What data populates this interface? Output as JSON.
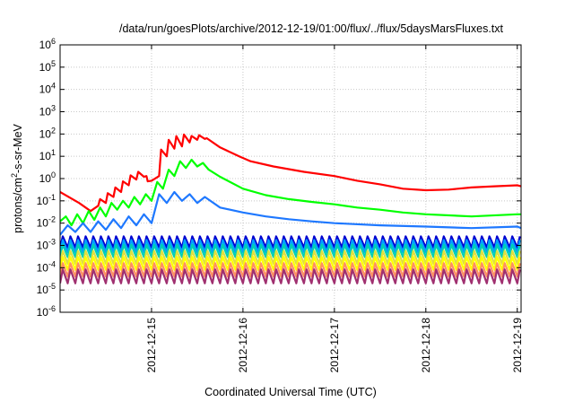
{
  "chart_data": {
    "type": "line",
    "title": "/data/run/goesPlots/archive/2012-12-19/01:00/flux/../flux/5daysMarsFluxes.txt",
    "xlabel": "Coordinated Universal Time (UTC)",
    "ylabel": {
      "prefix": "protons/cm",
      "sup": "2",
      "suffix": "-s-sr-MeV"
    },
    "yscale": "log",
    "ylim": [
      -6,
      6
    ],
    "yticks": [
      {
        "base": "10",
        "exp": "-6",
        "pow": -6
      },
      {
        "base": "10",
        "exp": "-5",
        "pow": -5
      },
      {
        "base": "10",
        "exp": "-4",
        "pow": -4
      },
      {
        "base": "10",
        "exp": "-3",
        "pow": -3
      },
      {
        "base": "10",
        "exp": "-2",
        "pow": -2
      },
      {
        "base": "10",
        "exp": "-1",
        "pow": -1
      },
      {
        "base": "10",
        "exp": "0",
        "pow": 0
      },
      {
        "base": "10",
        "exp": "1",
        "pow": 1
      },
      {
        "base": "10",
        "exp": "2",
        "pow": 2
      },
      {
        "base": "10",
        "exp": "3",
        "pow": 3
      },
      {
        "base": "10",
        "exp": "4",
        "pow": 4
      },
      {
        "base": "10",
        "exp": "5",
        "pow": 5
      },
      {
        "base": "10",
        "exp": "6",
        "pow": 6
      }
    ],
    "xlim": [
      "2012-12-14 00:00",
      "2012-12-19 01:00"
    ],
    "xticks": [
      "2012-12-15",
      "2012-12-16",
      "2012-12-17",
      "2012-12-18",
      "2012-12-19"
    ],
    "grid": true,
    "series": [
      {
        "color": "#ff0000",
        "x": [
          "2012-12-14 00:00",
          "2012-12-14 05:00",
          "2012-12-14 08:00",
          "2012-12-14 10:00",
          "2012-12-14 10:30",
          "2012-12-14 12:00",
          "2012-12-14 12:30",
          "2012-12-14 14:00",
          "2012-12-14 14:30",
          "2012-12-14 16:00",
          "2012-12-14 16:30",
          "2012-12-14 18:00",
          "2012-12-14 18:30",
          "2012-12-14 20:00",
          "2012-12-14 20:30",
          "2012-12-14 22:00",
          "2012-12-14 22:40",
          "2012-12-14 23:00",
          "2012-12-15 00:00",
          "2012-12-15 02:00",
          "2012-12-15 02:30",
          "2012-12-15 04:00",
          "2012-12-15 04:30",
          "2012-12-15 06:00",
          "2012-12-15 06:30",
          "2012-12-15 08:00",
          "2012-12-15 08:30",
          "2012-12-15 10:00",
          "2012-12-15 10:30",
          "2012-12-15 12:00",
          "2012-12-15 12:30",
          "2012-12-15 14:00",
          "2012-12-15 14:30",
          "2012-12-15 18:00",
          "2012-12-15 23:00",
          "2012-12-16 02:00",
          "2012-12-16 08:00",
          "2012-12-16 16:00",
          "2012-12-17 00:00",
          "2012-12-17 06:00",
          "2012-12-17 12:00",
          "2012-12-17 18:00",
          "2012-12-18 00:00",
          "2012-12-18 06:00",
          "2012-12-18 12:00",
          "2012-12-18 18:00",
          "2012-12-19 00:00",
          "2012-12-19 01:00"
        ],
        "y": [
          0.25,
          0.08,
          0.035,
          0.06,
          0.12,
          0.08,
          0.22,
          0.15,
          0.4,
          0.25,
          0.75,
          0.5,
          1.4,
          0.9,
          2.0,
          1.2,
          1.3,
          0.75,
          0.8,
          1.3,
          20,
          10,
          55,
          22,
          80,
          28,
          95,
          42,
          82,
          55,
          88,
          60,
          65,
          25,
          10,
          6,
          3.5,
          2.0,
          1.3,
          0.8,
          0.55,
          0.35,
          0.3,
          0.32,
          0.4,
          0.45,
          0.5,
          0.45
        ]
      },
      {
        "color": "#00ff00",
        "x": [
          "2012-12-14 00:00",
          "2012-12-14 01:30",
          "2012-12-14 03:00",
          "2012-12-14 04:30",
          "2012-12-14 06:00",
          "2012-12-14 07:30",
          "2012-12-14 09:00",
          "2012-12-14 10:30",
          "2012-12-14 12:00",
          "2012-12-14 13:30",
          "2012-12-14 15:00",
          "2012-12-14 16:30",
          "2012-12-14 18:00",
          "2012-12-14 19:30",
          "2012-12-14 21:00",
          "2012-12-14 22:30",
          "2012-12-15 00:00",
          "2012-12-15 01:30",
          "2012-12-15 03:00",
          "2012-12-15 04:30",
          "2012-12-15 06:00",
          "2012-12-15 07:30",
          "2012-12-15 09:00",
          "2012-12-15 10:30",
          "2012-12-15 12:00",
          "2012-12-15 13:30",
          "2012-12-15 15:00",
          "2012-12-15 18:00",
          "2012-12-16 00:00",
          "2012-12-16 06:00",
          "2012-12-16 12:00",
          "2012-12-16 18:00",
          "2012-12-17 00:00",
          "2012-12-17 06:00",
          "2012-12-17 12:00",
          "2012-12-17 18:00",
          "2012-12-18 00:00",
          "2012-12-18 12:00",
          "2012-12-19 00:00",
          "2012-12-19 01:00"
        ],
        "y": [
          0.012,
          0.02,
          0.008,
          0.025,
          0.01,
          0.035,
          0.014,
          0.05,
          0.02,
          0.08,
          0.04,
          0.1,
          0.05,
          0.15,
          0.07,
          0.2,
          0.1,
          0.7,
          0.35,
          2.5,
          1.3,
          6,
          3,
          7,
          3.5,
          5,
          2.5,
          1.2,
          0.35,
          0.18,
          0.12,
          0.09,
          0.07,
          0.05,
          0.04,
          0.03,
          0.025,
          0.02,
          0.025,
          0.025
        ]
      },
      {
        "color": "#1e78ff",
        "x": [
          "2012-12-14 00:00",
          "2012-12-14 02:00",
          "2012-12-14 04:00",
          "2012-12-14 06:00",
          "2012-12-14 08:00",
          "2012-12-14 10:00",
          "2012-12-14 12:00",
          "2012-12-14 14:00",
          "2012-12-14 16:00",
          "2012-12-14 18:00",
          "2012-12-14 20:00",
          "2012-12-14 22:00",
          "2012-12-15 00:00",
          "2012-12-15 02:00",
          "2012-12-15 04:00",
          "2012-12-15 06:00",
          "2012-12-15 08:00",
          "2012-12-15 10:00",
          "2012-12-15 12:00",
          "2012-12-15 14:00",
          "2012-12-15 18:00",
          "2012-12-16 00:00",
          "2012-12-16 06:00",
          "2012-12-16 12:00",
          "2012-12-16 18:00",
          "2012-12-17 00:00",
          "2012-12-17 12:00",
          "2012-12-18 00:00",
          "2012-12-18 12:00",
          "2012-12-19 00:00",
          "2012-12-19 01:00"
        ],
        "y": [
          0.003,
          0.008,
          0.004,
          0.01,
          0.004,
          0.012,
          0.005,
          0.015,
          0.006,
          0.02,
          0.008,
          0.025,
          0.01,
          0.2,
          0.08,
          0.25,
          0.1,
          0.2,
          0.08,
          0.15,
          0.05,
          0.03,
          0.02,
          0.015,
          0.012,
          0.01,
          0.008,
          0.007,
          0.006,
          0.007,
          0.006
        ]
      },
      {
        "color": "#0000d0",
        "base": 0.0008,
        "amp": 3.2
      },
      {
        "color": "#00a0ff",
        "base": 0.0005,
        "amp": 3.5
      },
      {
        "color": "#00d0b0",
        "base": 0.0003,
        "amp": 3.6
      },
      {
        "color": "#e0e040",
        "base": 0.00015,
        "amp": 3.8
      },
      {
        "color": "#ffff00",
        "base": 8e-05,
        "amp": 3.8
      },
      {
        "color": "#ff9060",
        "base": 4e-05,
        "amp": 4.0
      },
      {
        "color": "#a03070",
        "base": 2e-05,
        "amp": 4.2
      }
    ]
  }
}
